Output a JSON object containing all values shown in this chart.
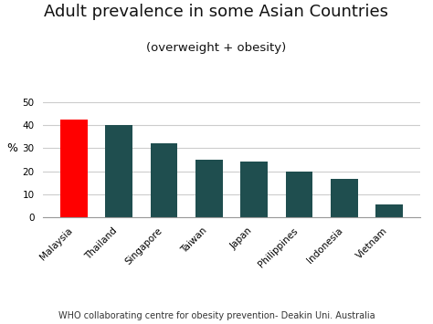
{
  "title": "Adult prevalence in some Asian Countries",
  "subtitle": "(overweight + obesity)",
  "categories": [
    "Malaysia",
    "Thailand",
    "Singapore",
    "Taiwan",
    "Japan",
    "Philippines",
    "Indonesia",
    "Vietnam"
  ],
  "values": [
    42.5,
    40.0,
    32.0,
    25.0,
    24.0,
    20.0,
    16.5,
    5.5
  ],
  "bar_colors": [
    "#FF0000",
    "#1F4E4F",
    "#1F4E4F",
    "#1F4E4F",
    "#1F4E4F",
    "#1F4E4F",
    "#1F4E4F",
    "#1F4E4F"
  ],
  "ylabel": "%",
  "ylim": [
    0,
    55
  ],
  "yticks": [
    0,
    10,
    20,
    30,
    40,
    50
  ],
  "footnote": "WHO collaborating centre for obesity prevention- Deakin Uni. Australia",
  "background_color": "#FFFFFF",
  "title_fontsize": 13,
  "subtitle_fontsize": 9.5,
  "ylabel_fontsize": 9,
  "tick_fontsize": 7.5,
  "footnote_fontsize": 7
}
